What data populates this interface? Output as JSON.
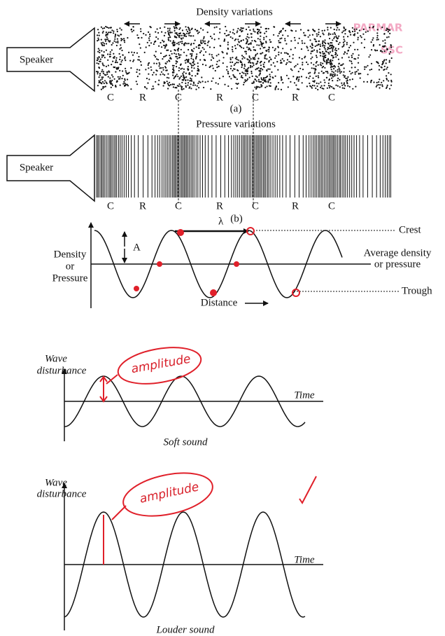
{
  "figure_a": {
    "title": "Density variations",
    "speaker": "Speaker",
    "labels": [
      "C",
      "R",
      "C",
      "R",
      "C",
      "R",
      "C"
    ],
    "caption": "(a)"
  },
  "figure_b": {
    "title": "Pressure variations",
    "speaker": "Speaker",
    "labels": [
      "C",
      "R",
      "C",
      "R",
      "C",
      "R",
      "C"
    ],
    "caption": "(b)"
  },
  "wave_graph": {
    "y_label": [
      "Density",
      "or",
      "Pressure"
    ],
    "amplitude": "A",
    "wavelength": "λ",
    "crest": "Crest",
    "average": [
      "Average density",
      "or pressure"
    ],
    "trough": "Trough",
    "x_label": "Distance"
  },
  "soft_sound": {
    "y_label": [
      "Wave",
      "disturbance"
    ],
    "annotation": "amplitude",
    "x_label": "Time",
    "caption": "Soft sound"
  },
  "louder_sound": {
    "y_label": [
      "Wave",
      "disturbance"
    ],
    "annotation": "amplitude",
    "x_label": "Time",
    "caption": "Louder sound"
  },
  "watermark": [
    "PARMAR",
    "SSC"
  ]
}
